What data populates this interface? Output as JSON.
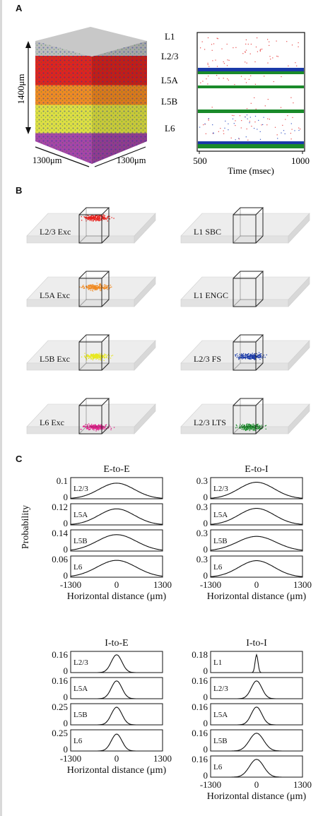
{
  "panels": {
    "a": "A",
    "b": "B",
    "c": "C"
  },
  "panel_a": {
    "layer_labels": [
      "L1",
      "L2/3",
      "L5A",
      "L5B",
      "L6"
    ],
    "depth_label": "1400μm",
    "width_label_left": "1300μm",
    "width_label_right": "1300μm",
    "layer_colors": [
      "#b9b9b9",
      "#e0201c",
      "#f18a22",
      "#e4e447",
      "#a844a8"
    ],
    "raster": {
      "x_ticks": [
        "500",
        "1000"
      ],
      "xlabel": "Time (msec)"
    }
  },
  "panel_b": {
    "items": [
      {
        "label": "L2/3 Exc",
        "color": "#e8201c"
      },
      {
        "label": "L1 SBC",
        "color": ""
      },
      {
        "label": "L5A Exc",
        "color": "#f18a22"
      },
      {
        "label": "L1 ENGC",
        "color": ""
      },
      {
        "label": "L5B Exc",
        "color": "#e8e820"
      },
      {
        "label": "L2/3 FS",
        "color": "#1a3aa8"
      },
      {
        "label": "L6 Exc",
        "color": "#e0208a"
      },
      {
        "label": "L2/3 LTS",
        "color": "#1a8a2a"
      }
    ]
  },
  "chart_data": [
    {
      "type": "line",
      "title": "E-to-E",
      "ylabel": "Probability",
      "xlabel": "Horizontal distance (μm)",
      "x_ticks": [
        "-1300",
        "0",
        "1300"
      ],
      "rows": [
        {
          "label": "L2/3",
          "ymax": "0.1",
          "peak": 0.085,
          "sigma": 500
        },
        {
          "label": "L5A",
          "ymax": "0.12",
          "peak": 0.105,
          "sigma": 500
        },
        {
          "label": "L5B",
          "ymax": "0.14",
          "peak": 0.125,
          "sigma": 550
        },
        {
          "label": "L6",
          "ymax": "0.06",
          "peak": 0.055,
          "sigma": 550
        }
      ]
    },
    {
      "type": "line",
      "title": "E-to-I",
      "ylabel": "",
      "xlabel": "Horizontal distance (μm)",
      "x_ticks": [
        "-1300",
        "0",
        "1300"
      ],
      "rows": [
        {
          "label": "L2/3",
          "ymax": "0.3",
          "peak": 0.27,
          "sigma": 500
        },
        {
          "label": "L5A",
          "ymax": "0.3",
          "peak": 0.27,
          "sigma": 500
        },
        {
          "label": "L5B",
          "ymax": "0.3",
          "peak": 0.24,
          "sigma": 550
        },
        {
          "label": "L6",
          "ymax": "0.3",
          "peak": 0.27,
          "sigma": 500
        }
      ]
    },
    {
      "type": "line",
      "title": "I-to-E",
      "ylabel": "",
      "xlabel": "Horizontal distance (μm)",
      "x_ticks": [
        "-1300",
        "0",
        "1300"
      ],
      "rows": [
        {
          "label": "L2/3",
          "ymax": "0.16",
          "peak": 0.155,
          "sigma": 150
        },
        {
          "label": "L5A",
          "ymax": "0.16",
          "peak": 0.155,
          "sigma": 150
        },
        {
          "label": "L5B",
          "ymax": "0.25",
          "peak": 0.24,
          "sigma": 150
        },
        {
          "label": "L6",
          "ymax": "0.25",
          "peak": 0.23,
          "sigma": 150
        }
      ]
    },
    {
      "type": "line",
      "title": "I-to-I",
      "ylabel": "",
      "xlabel": "Horizontal distance (μm)",
      "x_ticks": [
        "-1300",
        "0",
        "1300"
      ],
      "rows": [
        {
          "label": "L1",
          "ymax": "0.18",
          "peak": 0.175,
          "sigma": 40
        },
        {
          "label": "L2/3",
          "ymax": "0.16",
          "peak": 0.155,
          "sigma": 150
        },
        {
          "label": "L5A",
          "ymax": "0.16",
          "peak": 0.155,
          "sigma": 150
        },
        {
          "label": "L5B",
          "ymax": "0.16",
          "peak": 0.155,
          "sigma": 200
        },
        {
          "label": "L6",
          "ymax": "0.16",
          "peak": 0.155,
          "sigma": 200
        }
      ]
    }
  ]
}
